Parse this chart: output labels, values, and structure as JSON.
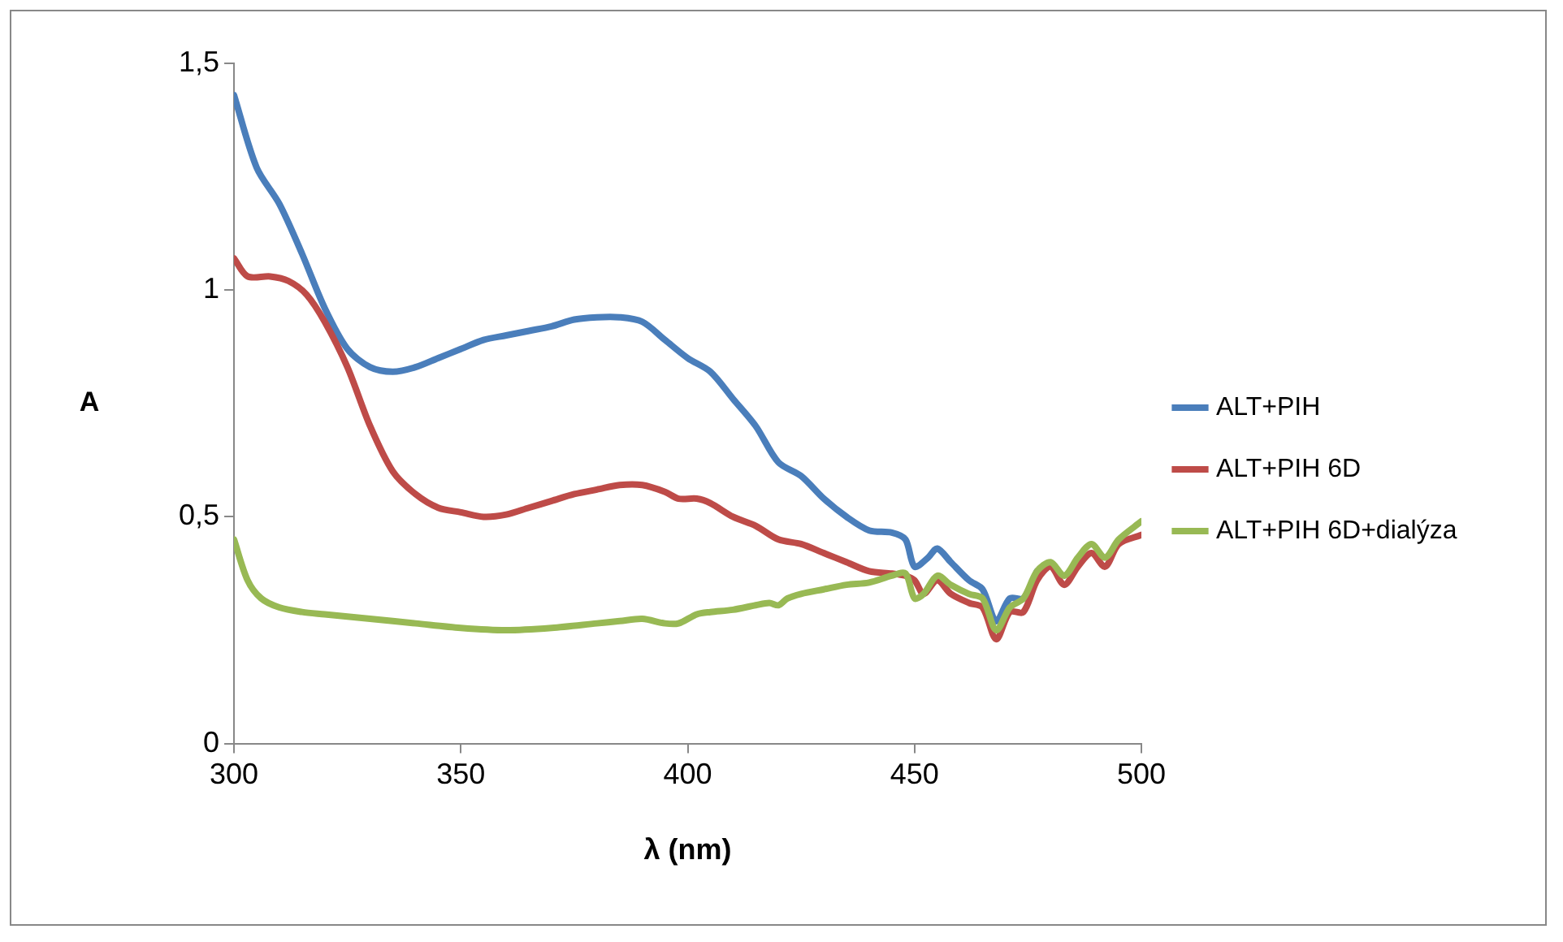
{
  "chart_data": {
    "type": "line",
    "xlabel": "λ (nm)",
    "ylabel": "A",
    "xlim": [
      300,
      500
    ],
    "xticks": [
      300,
      350,
      400,
      450,
      500
    ],
    "ylim": [
      0,
      1.5
    ],
    "yticks": [
      0,
      {
        "value": 0.5,
        "label": "0,5"
      },
      1,
      {
        "value": 1.5,
        "label": "1,5"
      }
    ],
    "grid": false,
    "legend": "right",
    "marker": "none",
    "line_style": "solid",
    "series": [
      {
        "name": "ALT+PIH",
        "color": "#4a7ebb",
        "x": [
          300,
          305,
          310,
          315,
          320,
          325,
          330,
          335,
          340,
          345,
          350,
          355,
          360,
          365,
          370,
          375,
          380,
          385,
          390,
          395,
          400,
          405,
          410,
          415,
          420,
          425,
          430,
          435,
          440,
          445,
          448,
          450,
          453,
          455,
          458,
          462,
          465,
          468,
          471,
          474,
          477
        ],
        "values": [
          1.43,
          1.27,
          1.19,
          1.08,
          0.96,
          0.87,
          0.83,
          0.82,
          0.83,
          0.85,
          0.87,
          0.89,
          0.9,
          0.91,
          0.92,
          0.935,
          0.94,
          0.94,
          0.93,
          0.89,
          0.85,
          0.82,
          0.76,
          0.7,
          0.62,
          0.59,
          0.54,
          0.5,
          0.47,
          0.465,
          0.45,
          0.39,
          0.41,
          0.43,
          0.4,
          0.36,
          0.34,
          0.27,
          0.32,
          0.32,
          0.38
        ]
      },
      {
        "name": "ALT+PIH 6D",
        "color": "#be4b48",
        "x": [
          300,
          303,
          308,
          312,
          316,
          320,
          325,
          330,
          335,
          340,
          345,
          350,
          355,
          360,
          365,
          370,
          375,
          380,
          385,
          390,
          395,
          398,
          402,
          405,
          410,
          415,
          420,
          425,
          430,
          435,
          440,
          445,
          448,
          450,
          452,
          455,
          458,
          462,
          465,
          468,
          471,
          474,
          477,
          480,
          483,
          486,
          489,
          492,
          495,
          500
        ],
        "values": [
          1.07,
          1.03,
          1.03,
          1.02,
          0.99,
          0.93,
          0.83,
          0.7,
          0.6,
          0.55,
          0.52,
          0.51,
          0.5,
          0.505,
          0.52,
          0.535,
          0.55,
          0.56,
          0.57,
          0.57,
          0.555,
          0.54,
          0.54,
          0.53,
          0.5,
          0.48,
          0.45,
          0.44,
          0.42,
          0.4,
          0.38,
          0.375,
          0.37,
          0.36,
          0.33,
          0.36,
          0.33,
          0.31,
          0.3,
          0.23,
          0.29,
          0.29,
          0.36,
          0.39,
          0.35,
          0.39,
          0.42,
          0.39,
          0.44,
          0.46
        ]
      },
      {
        "name": "ALT+PIH 6D+dialýza",
        "color": "#98b954",
        "x": [
          300,
          303,
          306,
          310,
          315,
          320,
          330,
          340,
          350,
          360,
          370,
          380,
          385,
          390,
          395,
          398,
          402,
          405,
          410,
          415,
          418,
          420,
          422,
          425,
          430,
          435,
          440,
          445,
          448,
          450,
          452,
          455,
          458,
          462,
          465,
          468,
          471,
          474,
          477,
          480,
          483,
          486,
          489,
          492,
          495,
          500
        ],
        "values": [
          0.45,
          0.36,
          0.32,
          0.3,
          0.29,
          0.285,
          0.275,
          0.265,
          0.255,
          0.25,
          0.255,
          0.265,
          0.27,
          0.275,
          0.265,
          0.265,
          0.285,
          0.29,
          0.295,
          0.305,
          0.31,
          0.305,
          0.32,
          0.33,
          0.34,
          0.35,
          0.355,
          0.37,
          0.375,
          0.32,
          0.33,
          0.37,
          0.35,
          0.33,
          0.32,
          0.25,
          0.3,
          0.32,
          0.38,
          0.4,
          0.37,
          0.41,
          0.44,
          0.41,
          0.45,
          0.49
        ]
      }
    ]
  }
}
